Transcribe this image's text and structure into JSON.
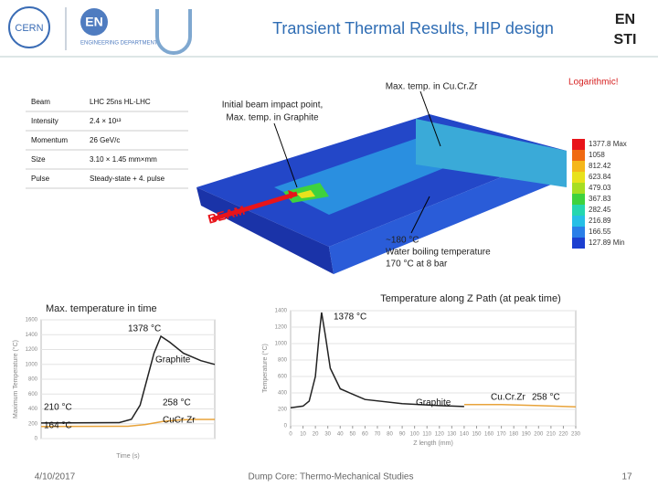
{
  "header": {
    "title": "Transient Thermal Results, HIP design",
    "cern_logo": "CERN",
    "dept_logo": "EN",
    "dept_name": "ENGINEERING DEPARTMENT",
    "group_logo_top": "EN",
    "group_logo_bottom": "STI"
  },
  "table": {
    "rows": [
      [
        "Beam",
        "LHC 25ns HL-LHC"
      ],
      [
        "Intensity",
        "2.4 × 10¹³"
      ],
      [
        "Momentum",
        "26 GeV/c"
      ],
      [
        "Size",
        "3.10 × 1.45 mm×mm"
      ],
      [
        "Pulse",
        "Steady-state + 4. pulse"
      ]
    ]
  },
  "simulation": {
    "max_cucrzr": "Max. temp. in Cu.Cr.Zr",
    "impact": "Initial beam impact point,",
    "impact2": "Max. temp. in Graphite",
    "beam": "BEAM",
    "water1": "~180 °C",
    "water2": "Water boiling temperature",
    "water3": "170 °C at 8 bar",
    "legend": {
      "title": "Logarithmic!",
      "levels": [
        {
          "label": "1377.8 Max",
          "color": "#e8141a"
        },
        {
          "label": "1058",
          "color": "#f06a12"
        },
        {
          "label": "812.42",
          "color": "#f5b71a"
        },
        {
          "label": "623.84",
          "color": "#e8e21c"
        },
        {
          "label": "479.03",
          "color": "#a7de22"
        },
        {
          "label": "367.83",
          "color": "#3ed23e"
        },
        {
          "label": "282.45",
          "color": "#25d6b0"
        },
        {
          "label": "216.89",
          "color": "#26bfe6"
        },
        {
          "label": "166.55",
          "color": "#2a7fe8"
        },
        {
          "label": "127.89 Min",
          "color": "#1c3fd0"
        }
      ]
    }
  },
  "charts": [
    {
      "type": "line",
      "title": "Max. temperature in time",
      "ylabel": "Maximum Temperature (°C)",
      "xlabel": "Time (s)",
      "xlim": [
        0,
        100
      ],
      "ylim": [
        0,
        1600
      ],
      "yticks": [
        0,
        200,
        400,
        600,
        800,
        1000,
        1200,
        1400,
        1600
      ],
      "series": [
        {
          "color": "#222222",
          "x": [
            0,
            45,
            52,
            57,
            61,
            65,
            69,
            74,
            82,
            92,
            100
          ],
          "values": [
            210,
            215,
            260,
            450,
            800,
            1150,
            1378,
            1300,
            1150,
            1050,
            1000
          ]
        },
        {
          "color": "#e8a33a",
          "x": [
            0,
            50,
            60,
            70,
            80,
            90,
            100
          ],
          "values": [
            164,
            166,
            190,
            230,
            252,
            258,
            258
          ]
        }
      ],
      "annotations": [
        "1378 °C",
        "Graphite",
        "210 °C",
        "164 °C",
        "258 °C",
        "CuCr Zr"
      ]
    },
    {
      "type": "line",
      "title": "Temperature along Z Path (at peak time)",
      "ylabel": "Temperature (°C)",
      "xlabel": "Z length (mm)",
      "xlim": [
        0,
        230
      ],
      "ylim": [
        0,
        1400
      ],
      "yticks": [
        0,
        200,
        400,
        600,
        800,
        1000,
        1200,
        1400
      ],
      "xticks": [
        0,
        10,
        20,
        30,
        40,
        50,
        60,
        70,
        80,
        90,
        100,
        110,
        120,
        130,
        140,
        150,
        160,
        170,
        180,
        190,
        200,
        210,
        220,
        230
      ],
      "series": [
        {
          "color": "#222222",
          "x": [
            0,
            10,
            15,
            20,
            23,
            25,
            28,
            32,
            40,
            60,
            90,
            120,
            140
          ],
          "values": [
            220,
            240,
            300,
            600,
            1100,
            1378,
            1100,
            700,
            450,
            320,
            270,
            245,
            235
          ]
        },
        {
          "color": "#e8a33a",
          "x": [
            140,
            170,
            200,
            230
          ],
          "values": [
            258,
            258,
            245,
            230
          ]
        }
      ],
      "annotations": [
        "1378 °C",
        "Graphite",
        "Cu.Cr.Zr",
        "258 °C"
      ]
    }
  ],
  "footer": {
    "date": "4/10/2017",
    "title": "Dump Core: Thermo-Mechanical Studies",
    "page": "17"
  }
}
